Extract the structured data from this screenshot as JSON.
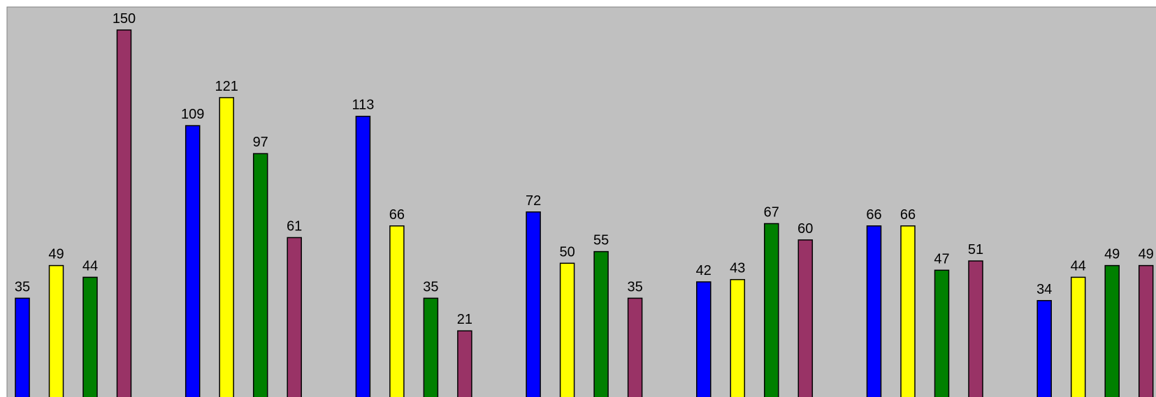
{
  "chart_data": {
    "type": "bar",
    "categories": [
      "",
      "",
      "",
      "",
      "",
      "",
      ""
    ],
    "series": [
      {
        "color": "#0000ff",
        "values": [
          35,
          109,
          113,
          72,
          42,
          66,
          34
        ]
      },
      {
        "color": "#ffff00",
        "values": [
          49,
          121,
          66,
          50,
          43,
          66,
          44
        ]
      },
      {
        "color": "#008000",
        "values": [
          44,
          97,
          35,
          55,
          67,
          47,
          49
        ]
      },
      {
        "color": "#993366",
        "values": [
          150,
          61,
          21,
          35,
          60,
          51,
          49
        ]
      }
    ],
    "data_labels": true,
    "plot_background": "#c0c0c0",
    "ylim": [
      0,
      150
    ],
    "grid": false,
    "legend": "none"
  }
}
